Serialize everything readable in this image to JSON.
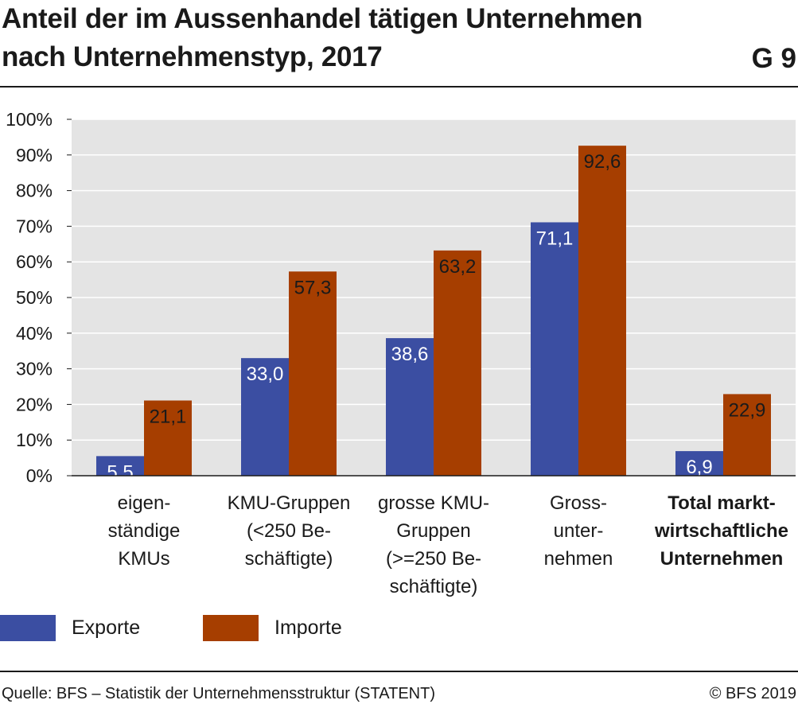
{
  "header": {
    "title_line1": "Anteil der im Aussenhandel tätigen Unternehmen",
    "title_line2": "nach Unternehmenstyp, 2017",
    "figure_number": "G 9"
  },
  "chart_data": {
    "type": "bar",
    "categories": [
      [
        "eigen-",
        "ständige",
        "KMUs"
      ],
      [
        "KMU-Gruppen",
        "(<250 Be-",
        "schäftigte)"
      ],
      [
        "grosse KMU-",
        "Gruppen",
        "(>=250 Be-",
        "schäftigte)"
      ],
      [
        "Gross-",
        "unter-",
        "nehmen"
      ],
      [
        "Total markt-",
        "wirtschaftliche",
        "Unternehmen"
      ]
    ],
    "bold_categories": [
      4
    ],
    "series": [
      {
        "name": "Exporte",
        "color": "#3b4ea2",
        "values": [
          5.5,
          33.0,
          38.6,
          71.1,
          6.9
        ],
        "labels": [
          "5,5",
          "33,0",
          "38,6",
          "71,1",
          "6,9"
        ]
      },
      {
        "name": "Importe",
        "color": "#a63e00",
        "values": [
          21.1,
          57.3,
          63.2,
          92.6,
          22.9
        ],
        "labels": [
          "21,1",
          "57,3",
          "63,2",
          "92,6",
          "22,9"
        ]
      }
    ],
    "ylim": [
      0,
      100
    ],
    "yticks": [
      "0%",
      "10%",
      "20%",
      "30%",
      "40%",
      "50%",
      "60%",
      "70%",
      "80%",
      "90%",
      "100%"
    ],
    "background": "#e4e4e4",
    "grid": true,
    "legend_position": "bottom-left"
  },
  "legend": [
    {
      "label": "Exporte",
      "color": "#3b4ea2"
    },
    {
      "label": "Importe",
      "color": "#a63e00"
    }
  ],
  "footer": {
    "source": "Quelle: BFS – Statistik der Unternehmensstruktur (STATENT)",
    "copyright": "© BFS 2019"
  }
}
